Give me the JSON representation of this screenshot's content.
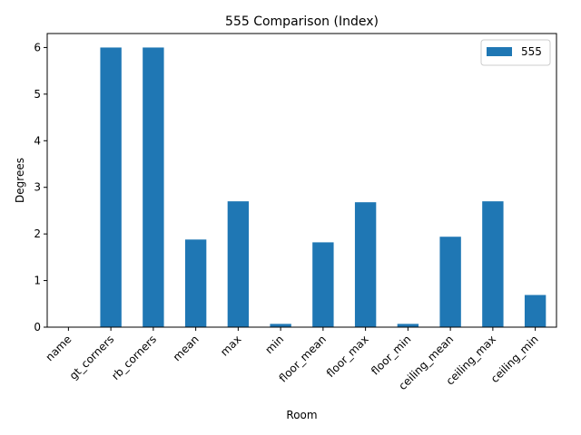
{
  "chart_data": {
    "type": "bar",
    "title": "555 Comparison (Index)",
    "xlabel": "Room",
    "ylabel": "Degrees",
    "categories": [
      "name",
      "gt_corners",
      "rb_corners",
      "mean",
      "max",
      "min",
      "floor_mean",
      "floor_max",
      "floor_min",
      "ceiling_mean",
      "ceiling_max",
      "ceiling_min"
    ],
    "series": [
      {
        "name": "555",
        "color": "#1f77b4",
        "values": [
          0,
          6,
          6,
          1.88,
          2.7,
          0.07,
          1.82,
          2.68,
          0.07,
          1.94,
          2.7,
          0.69
        ]
      }
    ],
    "ylim": [
      0,
      6.3
    ],
    "yticks": [
      0,
      1,
      2,
      3,
      4,
      5,
      6
    ],
    "x_tick_rotation": 45,
    "grid": false,
    "legend": "top-right"
  }
}
